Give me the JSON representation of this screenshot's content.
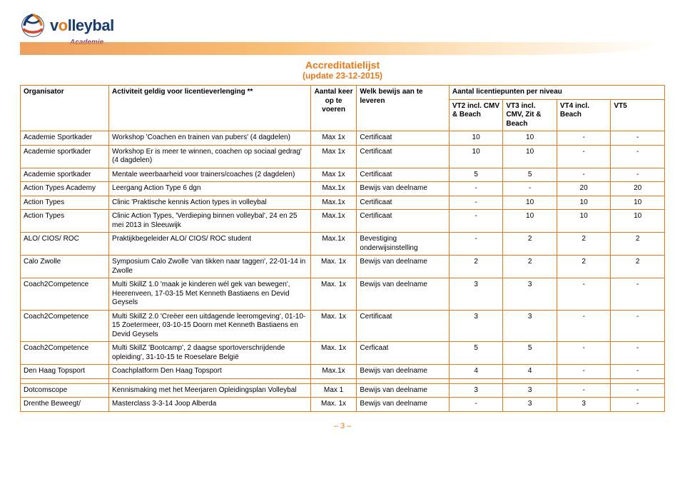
{
  "brand": {
    "name_pre": "v",
    "name_o": "o",
    "name_post": "lleybal",
    "sub": "Academie"
  },
  "titles": {
    "line1": "Accreditatielijst",
    "line2": "(update 23-12-2015)"
  },
  "header": {
    "organisator": "Organisator",
    "activiteit": "Activiteit geldig voor licentieverlenging **",
    "aantal_keer": "Aantal keer op te voeren",
    "bewijs": "Welk bewijs aan te leveren",
    "punten_span": "Aantal licentiepunten per niveau",
    "vt2": "VT2 incl. CMV & Beach",
    "vt3": "VT3 incl. CMV, Zit & Beach",
    "vt4": "VT4 incl. Beach",
    "vt5": "VT5"
  },
  "rows": [
    {
      "org": "Academie Sportkader",
      "act": "Workshop 'Coachen en trainen van pubers' (4 dagdelen)",
      "keer": "Max 1x",
      "bewijs": "Certificaat",
      "v2": "10",
      "v3": "10",
      "v4": "-",
      "v5": "-"
    },
    {
      "org": "Academie sportkader",
      "act": "Workshop Er is meer te winnen, coachen op sociaal gedrag' (4 dagdelen)",
      "keer": "Max 1x",
      "bewijs": "Certificaat",
      "v2": "10",
      "v3": "10",
      "v4": "-",
      "v5": "-"
    },
    {
      "org": "Academie sportkader",
      "act": "Mentale weerbaarheid voor trainers/coaches (2 dagdelen)",
      "keer": "Max 1x",
      "bewijs": "Certificaat",
      "v2": "5",
      "v3": "5",
      "v4": "-",
      "v5": "-"
    },
    {
      "org": "Action Types Academy",
      "act": "Leergang Action Type 6 dgn",
      "keer": "Max.1x",
      "bewijs": "Bewijs van deelname",
      "v2": "-",
      "v3": "-",
      "v4": "20",
      "v5": "20"
    },
    {
      "org": "Action Types",
      "act": "Clinic 'Praktische kennis Action types in volleybal",
      "keer": "Max.1x",
      "bewijs": "Certificaat",
      "v2": "-",
      "v3": "10",
      "v4": "10",
      "v5": "10"
    },
    {
      "org": "Action Types",
      "act": "Clinic Action Types, 'Verdieping binnen volleybal', 24 en 25 mei 2013 in Sleeuwijk",
      "keer": "Max.1x",
      "bewijs": "Certificaat",
      "v2": "-",
      "v3": "10",
      "v4": "10",
      "v5": "10"
    },
    {
      "org": "ALO/ CIOS/ ROC",
      "act": "Praktijkbegeleider ALO/ CIOS/ ROC student",
      "keer": "Max.1x",
      "bewijs": "Bevestiging onderwijsinstelling",
      "v2": "-",
      "v3": "2",
      "v4": "2",
      "v5": "2"
    },
    {
      "org": "Calo Zwolle",
      "act": "Symposium Calo Zwolle 'van tikken naar taggen', 22-01-14 in Zwolle",
      "keer": "Max. 1x",
      "bewijs": "Bewijs van deelname",
      "v2": "2",
      "v3": "2",
      "v4": "2",
      "v5": "2"
    },
    {
      "org": "Coach2Competence",
      "act": "Multi SkillZ 1.0 'maak je kinderen wél gek van bewegen', Heerenveen, 17-03-15 Met Kenneth Bastiaens en Devid Geysels",
      "keer": "Max. 1x",
      "bewijs": "Bewijs van deelname",
      "v2": "3",
      "v3": "3",
      "v4": "-",
      "v5": "-"
    },
    {
      "org": "Coach2Competence",
      "act": "Multi SkillZ 2.0 'Creëer een uitdagende leeromgeving', 01-10-15 Zoetermeer, 03-10-15 Doorn met Kenneth Bastiaens en Devid Geysels",
      "keer": "Max. 1x",
      "bewijs": "Certificaat",
      "v2": "3",
      "v3": "3",
      "v4": "-",
      "v5": "-"
    },
    {
      "org": "Coach2Competence",
      "act": "Multi SkillZ 'Bootcamp', 2 daagse sportoverschrijdende opleiding', 31-10-15 te Roeselare België",
      "keer": "Max. 1x",
      "bewijs": "Cerficaat",
      "v2": "5",
      "v3": "5",
      "v4": "-",
      "v5": "-"
    },
    {
      "org": "Den Haag Topsport",
      "act": "Coachplatform Den Haag Topsport",
      "keer": "Max.1x",
      "bewijs": "Bewijs van deelname",
      "v2": "4",
      "v3": "4",
      "v4": "-",
      "v5": "-"
    },
    {
      "org": "",
      "act": "",
      "keer": "",
      "bewijs": "",
      "v2": "",
      "v3": "",
      "v4": "",
      "v5": ""
    },
    {
      "org": "Dotcomscope",
      "act": "Kennismaking met het Meerjaren Opleidingsplan Volleybal",
      "keer": "Max 1",
      "bewijs": "Bewijs van deelname",
      "v2": "3",
      "v3": "3",
      "v4": "-",
      "v5": "-"
    },
    {
      "org": "Drenthe Beweegt/",
      "act": "Masterclass 3-3-14 Joop Alberda",
      "keer": "Max. 1x",
      "bewijs": "Bewijs van deelname",
      "v2": "-",
      "v3": "3",
      "v4": "3",
      "v5": "-"
    }
  ],
  "footer": {
    "page": "– 3 –"
  },
  "colors": {
    "accent": "#e67817",
    "navy": "#1a3b6e",
    "purple": "#6c4a8a"
  }
}
